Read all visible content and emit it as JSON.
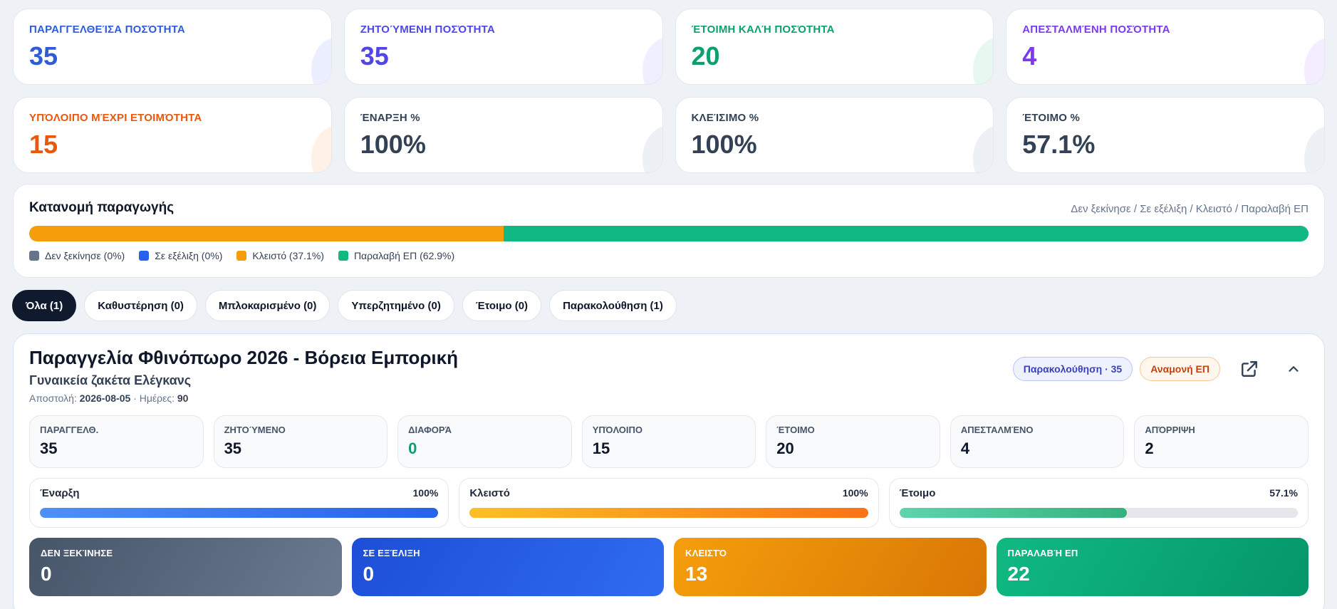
{
  "kpis": [
    {
      "label": "ΠΑΡΑΓΓΕΛΘΕΊΣΑ ΠΟΣΌΤΗΤΑ",
      "value": "35",
      "color": "#2f5bd8",
      "blob": "#c7d2fe"
    },
    {
      "label": "ΖΗΤΟΎΜΕΝΗ ΠΟΣΌΤΗΤΑ",
      "value": "35",
      "color": "#4f46e5",
      "blob": "#d4d0ff"
    },
    {
      "label": "ΈΤΟΙΜΗ ΚΑΛΉ ΠΟΣΌΤΗΤΑ",
      "value": "20",
      "color": "#0e9f6e",
      "blob": "#b7ead2"
    },
    {
      "label": "ΑΠΕΣΤΑΛΜΈΝΗ ΠΟΣΌΤΗΤΑ",
      "value": "4",
      "color": "#7c3aed",
      "blob": "#e0ccff"
    },
    {
      "label": "ΥΠΌΛΟΙΠΟ ΜΈΧΡΙ ΕΤΟΙΜΌΤΗΤΑ",
      "value": "15",
      "color": "#ea580c",
      "blob": "#fed7b5"
    },
    {
      "label": "ΈΝΑΡΞΗ %",
      "value": "100%",
      "color": "#334155",
      "blob": "#cbd5e1"
    },
    {
      "label": "ΚΛΕΊΣΙΜΟ %",
      "value": "100%",
      "color": "#334155",
      "blob": "#cbd5e1"
    },
    {
      "label": "ΈΤΟΙΜΟ %",
      "value": "57.1%",
      "color": "#334155",
      "blob": "#cbd5e1"
    }
  ],
  "distribution": {
    "title": "Κατανομή παραγωγής",
    "subtitle": "Δεν ξεκίνησε / Σε εξέλιξη / Κλειστό / Παραλαβή ΕΠ",
    "segments": [
      {
        "label": "Δεν ξεκίνησε (0%)",
        "percent": 0,
        "color": "#64748b"
      },
      {
        "label": "Σε εξέλιξη (0%)",
        "percent": 0,
        "color": "#2563eb"
      },
      {
        "label": "Κλειστό (37.1%)",
        "percent": 37.1,
        "color": "#f59e0b"
      },
      {
        "label": "Παραλαβή ΕΠ (62.9%)",
        "percent": 62.9,
        "color": "#10b981"
      }
    ]
  },
  "tabs": [
    {
      "label": "Όλα (1)",
      "active": true
    },
    {
      "label": "Καθυστέρηση (0)",
      "active": false
    },
    {
      "label": "Μπλοκαρισμένο (0)",
      "active": false
    },
    {
      "label": "Υπερζητημένο (0)",
      "active": false
    },
    {
      "label": "Έτοιμο (0)",
      "active": false
    },
    {
      "label": "Παρακολούθηση (1)",
      "active": false
    }
  ],
  "order": {
    "title": "Παραγγελία Φθινόπωρο 2026 - Βόρεια Εμπορική",
    "product": "Γυναικεία ζακέτα Ελέγκανς",
    "shipment_label": "Αποστολή:",
    "shipment_date": "2026-08-05",
    "days_label": "· Ημέρες:",
    "days": "90",
    "badge_watch": "Παρακολούθηση · 35",
    "badge_wait": "Αναμονή ΕΠ",
    "metrics": [
      {
        "label": "ΠΑΡΑΓΓΕΛΘ.",
        "value": "35",
        "color": "#0f172a"
      },
      {
        "label": "ΖΗΤΟΎΜΕΝΟ",
        "value": "35",
        "color": "#0f172a"
      },
      {
        "label": "ΔΙΑΦΟΡΆ",
        "value": "0",
        "color": "#0e9f6e"
      },
      {
        "label": "ΥΠΌΛΟΙΠΟ",
        "value": "15",
        "color": "#0f172a"
      },
      {
        "label": "ΈΤΟΙΜΟ",
        "value": "20",
        "color": "#0f172a"
      },
      {
        "label": "ΑΠΕΣΤΑΛΜΈΝΟ",
        "value": "4",
        "color": "#0f172a"
      },
      {
        "label": "ΑΠΌΡΡΙΨΗ",
        "value": "2",
        "color": "#0f172a"
      }
    ],
    "progress": [
      {
        "label": "Έναρξη",
        "value_text": "100%",
        "fraction": 1.0,
        "gradient_from": "#4f8ff7",
        "gradient_to": "#2563eb"
      },
      {
        "label": "Κλειστό",
        "value_text": "100%",
        "fraction": 1.0,
        "gradient_from": "#fbbf24",
        "gradient_to": "#f97316"
      },
      {
        "label": "Έτοιμο",
        "value_text": "57.1%",
        "fraction": 0.571,
        "gradient_from": "#5fd3ad",
        "gradient_to": "#34b27d"
      }
    ],
    "status": [
      {
        "label": "ΔΕΝ ΞΕΚΊΝΗΣΕ",
        "value": "0",
        "from": "#475569",
        "to": "#6b7a90"
      },
      {
        "label": "ΣΕ ΕΞΈΛΙΞΗ",
        "value": "0",
        "from": "#1d4ed8",
        "to": "#2f6bf0"
      },
      {
        "label": "ΚΛΕΙΣΤΌ",
        "value": "13",
        "from": "#f59e0b",
        "to": "#d97706"
      },
      {
        "label": "ΠΑΡΑΛΑΒΉ ΕΠ",
        "value": "22",
        "from": "#10b981",
        "to": "#059669"
      }
    ]
  },
  "icons": {
    "open_external": "external-link-icon",
    "collapse": "chevron-up-icon"
  }
}
